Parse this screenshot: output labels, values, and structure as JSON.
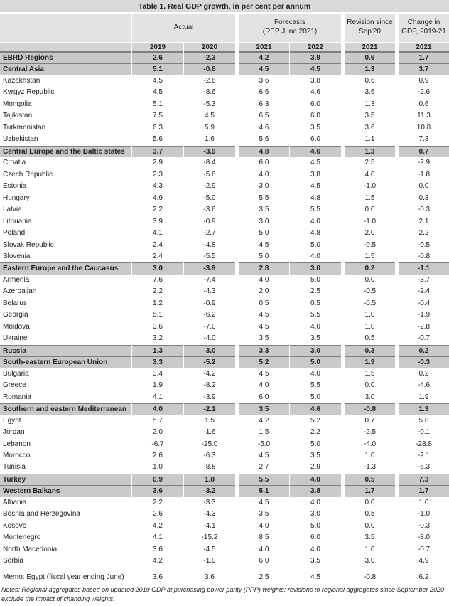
{
  "header": {
    "title": "Table 1. Real GDP growth, in per cent per annum",
    "groups": [
      [
        "Actual"
      ],
      [
        "Forecasts",
        "(REP June 2021)"
      ],
      [
        "Revision since",
        "Sep'20"
      ],
      [
        "Change in",
        "GDP, 2019-21"
      ]
    ],
    "years": [
      "2019",
      "2020",
      "2021",
      "2022",
      "2021",
      "2021"
    ]
  },
  "table": {
    "regions": [
      {
        "name": "EBRD Regions",
        "values": [
          "2.6",
          "-2.3",
          "4.2",
          "3.9",
          "0.6",
          "1.7"
        ]
      },
      {
        "name": "Central Asia",
        "values": [
          "5.1",
          "-0.8",
          "4.5",
          "4.5",
          "1.3",
          "3.7"
        ],
        "countries": [
          {
            "name": "Kazakhstan",
            "values": [
              "4.5",
              "-2.6",
              "3.6",
              "3.8",
              "0.6",
              "0.9"
            ]
          },
          {
            "name": "Kyrgyz Republic",
            "values": [
              "4.5",
              "-8.6",
              "6.6",
              "4.6",
              "3.6",
              "-2.6"
            ]
          },
          {
            "name": "Mongolia",
            "values": [
              "5.1",
              "-5.3",
              "6.3",
              "6.0",
              "1.3",
              "0.6"
            ]
          },
          {
            "name": "Tajikistan",
            "values": [
              "7.5",
              "4.5",
              "6.5",
              "6.0",
              "3.5",
              "11.3"
            ]
          },
          {
            "name": "Turkmenistan",
            "values": [
              "6.3",
              "5.9",
              "4.6",
              "3.5",
              "3.6",
              "10.8"
            ]
          },
          {
            "name": "Uzbekistan",
            "values": [
              "5.6",
              "1.6",
              "5.6",
              "6.0",
              "1.1",
              "7.3"
            ]
          }
        ]
      },
      {
        "name": "Central Europe and the Baltic states",
        "values": [
          "3.7",
          "-3.9",
          "4.8",
          "4.6",
          "1.3",
          "0.7"
        ],
        "countries": [
          {
            "name": "Croatia",
            "values": [
              "2.9",
              "-8.4",
              "6.0",
              "4.5",
              "2.5",
              "-2.9"
            ]
          },
          {
            "name": "Czech Republic",
            "values": [
              "2.3",
              "-5.6",
              "4.0",
              "3.8",
              "4.0",
              "-1.8"
            ]
          },
          {
            "name": "Estonia",
            "values": [
              "4.3",
              "-2.9",
              "3.0",
              "4.5",
              "-1.0",
              "0.0"
            ]
          },
          {
            "name": "Hungary",
            "values": [
              "4.9",
              "-5.0",
              "5.5",
              "4.8",
              "1.5",
              "0.3"
            ]
          },
          {
            "name": "Latvia",
            "values": [
              "2.2",
              "-3.6",
              "3.5",
              "5.5",
              "0.0",
              "-0.3"
            ]
          },
          {
            "name": "Lithuania",
            "values": [
              "3.9",
              "-0.9",
              "3.0",
              "4.0",
              "-1.0",
              "2.1"
            ]
          },
          {
            "name": "Poland",
            "values": [
              "4.1",
              "-2.7",
              "5.0",
              "4.8",
              "2.0",
              "2.2"
            ]
          },
          {
            "name": "Slovak Republic",
            "values": [
              "2.4",
              "-4.8",
              "4.5",
              "5.0",
              "-0.5",
              "-0.5"
            ]
          },
          {
            "name": "Slovenia",
            "values": [
              "2.4",
              "-5.5",
              "5.0",
              "4.0",
              "1.5",
              "-0.8"
            ]
          }
        ]
      },
      {
        "name": "Eastern Europe and the Caucasus",
        "values": [
          "3.0",
          "-3.9",
          "2.8",
          "3.0",
          "0.2",
          "-1.1"
        ],
        "countries": [
          {
            "name": "Armenia",
            "values": [
              "7.6",
              "-7.4",
              "4.0",
              "5.0",
              "0.0",
              "-3.7"
            ]
          },
          {
            "name": "Azerbaijan",
            "values": [
              "2.2",
              "-4.3",
              "2.0",
              "2.5",
              "-0.5",
              "-2.4"
            ]
          },
          {
            "name": "Belarus",
            "values": [
              "1.2",
              "-0.9",
              "0.5",
              "0.5",
              "-0.5",
              "-0.4"
            ]
          },
          {
            "name": "Georgia",
            "values": [
              "5.1",
              "-6.2",
              "4.5",
              "5.5",
              "1.0",
              "-1.9"
            ]
          },
          {
            "name": "Moldova",
            "values": [
              "3.6",
              "-7.0",
              "4.5",
              "4.0",
              "1.0",
              "-2.8"
            ]
          },
          {
            "name": "Ukraine",
            "values": [
              "3.2",
              "-4.0",
              "3.5",
              "3.5",
              "0.5",
              "-0.7"
            ]
          }
        ]
      },
      {
        "name": "Russia",
        "values": [
          "1.3",
          "-3.0",
          "3.3",
          "3.0",
          "0.3",
          "0.2"
        ]
      },
      {
        "name": "South-eastern European Union",
        "values": [
          "3.3",
          "-5.2",
          "5.2",
          "5.0",
          "1.9",
          "-0.3"
        ],
        "countries": [
          {
            "name": "Bulgaria",
            "values": [
              "3.4",
              "-4.2",
              "4.5",
              "4.0",
              "1.5",
              "0.2"
            ]
          },
          {
            "name": "Greece",
            "values": [
              "1.9",
              "-8.2",
              "4.0",
              "5.5",
              "0.0",
              "-4.6"
            ]
          },
          {
            "name": "Romania",
            "values": [
              "4.1",
              "-3.9",
              "6.0",
              "5.0",
              "3.0",
              "1.9"
            ]
          }
        ]
      },
      {
        "name": "Southern and eastern Mediterranean",
        "values": [
          "4.0",
          "-2.1",
          "3.5",
          "4.6",
          "-0.8",
          "1.3"
        ],
        "countries": [
          {
            "name": "Egypt",
            "values": [
              "5.7",
              "1.5",
              "4.2",
              "5.2",
              "0.7",
              "5.8"
            ]
          },
          {
            "name": "Jordan",
            "values": [
              "2.0",
              "-1.6",
              "1.5",
              "2.2",
              "-2.5",
              "-0.1"
            ]
          },
          {
            "name": "Lebanon",
            "values": [
              "-6.7",
              "-25.0",
              "-5.0",
              "5.0",
              "-4.0",
              "-28.8"
            ]
          },
          {
            "name": "Morocco",
            "values": [
              "2.6",
              "-6.3",
              "4.5",
              "3.5",
              "1.0",
              "-2.1"
            ]
          },
          {
            "name": "Tunisia",
            "values": [
              "1.0",
              "-8.8",
              "2.7",
              "2.9",
              "-1.3",
              "-6.3"
            ]
          }
        ]
      },
      {
        "name": "Turkey",
        "values": [
          "0.9",
          "1.8",
          "5.5",
          "4.0",
          "0.5",
          "7.3"
        ]
      },
      {
        "name": "Western Balkans",
        "values": [
          "3.6",
          "-3.2",
          "5.1",
          "3.8",
          "1.7",
          "1.7"
        ],
        "countries": [
          {
            "name": "Albania",
            "values": [
              "2.2",
              "-3.3",
              "4.5",
              "4.0",
              "0.0",
              "1.0"
            ]
          },
          {
            "name": "Bosnia and Herzegovina",
            "values": [
              "2.6",
              "-4.3",
              "3.5",
              "3.0",
              "0.5",
              "-1.0"
            ]
          },
          {
            "name": "Kosovo",
            "values": [
              "4.2",
              "-4.1",
              "4.0",
              "5.0",
              "0.0",
              "-0.3"
            ]
          },
          {
            "name": "Montenegro",
            "values": [
              "4.1",
              "-15.2",
              "8.5",
              "6.0",
              "3.5",
              "-8.0"
            ]
          },
          {
            "name": "North Macedonia",
            "values": [
              "3.6",
              "-4.5",
              "4.0",
              "4.0",
              "1.0",
              "-0.7"
            ]
          },
          {
            "name": "Serbia",
            "values": [
              "4.2",
              "-1.0",
              "6.0",
              "3.5",
              "3.0",
              "4.9"
            ]
          }
        ]
      }
    ],
    "memo": {
      "name": "Memo: Egypt (fiscal year ending June)",
      "values": [
        "3.6",
        "3.6",
        "2.5",
        "4.5",
        "-0.8",
        "6.2"
      ]
    }
  },
  "notes": "Notes: Regional aggregates based on updated 2019 GDP at purchasing power parity (PPP) weights; revisions to regional aggregates since September 2020 exclude the impact of changing weights."
}
